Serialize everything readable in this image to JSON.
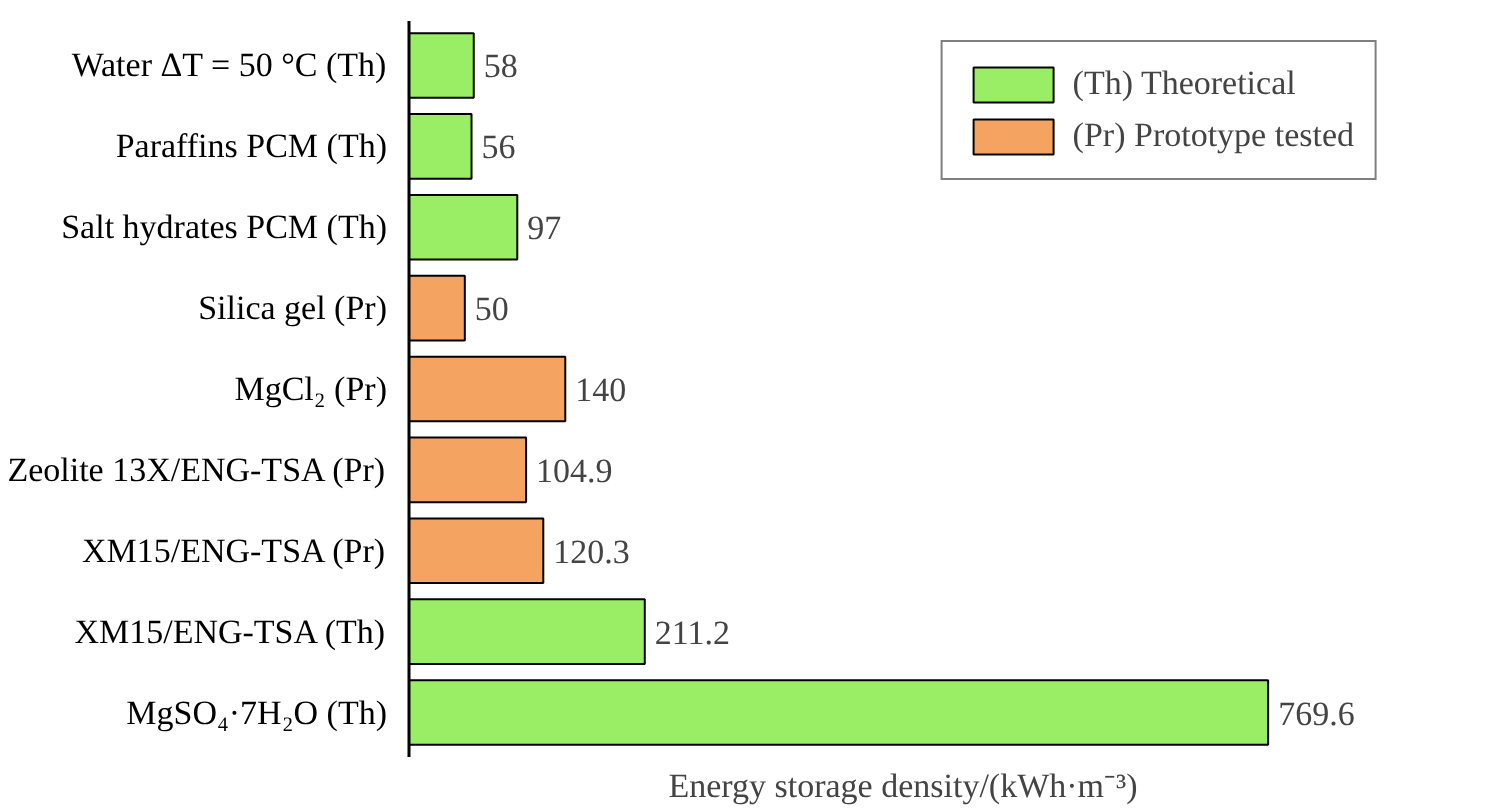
{
  "chart_data": {
    "type": "bar",
    "orientation": "horizontal",
    "xlabel": "Energy storage density/(kWh·m⁻³)",
    "categories": [
      "Water ΔT = 50 °C (Th)",
      "Paraffins PCM (Th)",
      "Salt hydrates PCM (Th)",
      "Silica gel (Pr)",
      "MgCl₂ (Pr)",
      "Zeolite 13X/ENG-TSA (Pr)",
      "XM15/ENG-TSA (Pr)",
      "XM15/ENG-TSA (Th)",
      "MgSO₄·7H₂O (Th)"
    ],
    "series": [
      {
        "name": "(Th) Theoretical",
        "color": "#99ee66",
        "values": [
          58,
          56,
          97,
          null,
          null,
          null,
          null,
          211.2,
          769.6
        ]
      },
      {
        "name": "(Pr) Prototype tested",
        "color": "#f4a460",
        "values": [
          null,
          null,
          null,
          50,
          140,
          104.9,
          120.3,
          null,
          null
        ]
      }
    ],
    "data_labels": true,
    "legend": "top right",
    "tick_labels": "y",
    "grid": false
  }
}
